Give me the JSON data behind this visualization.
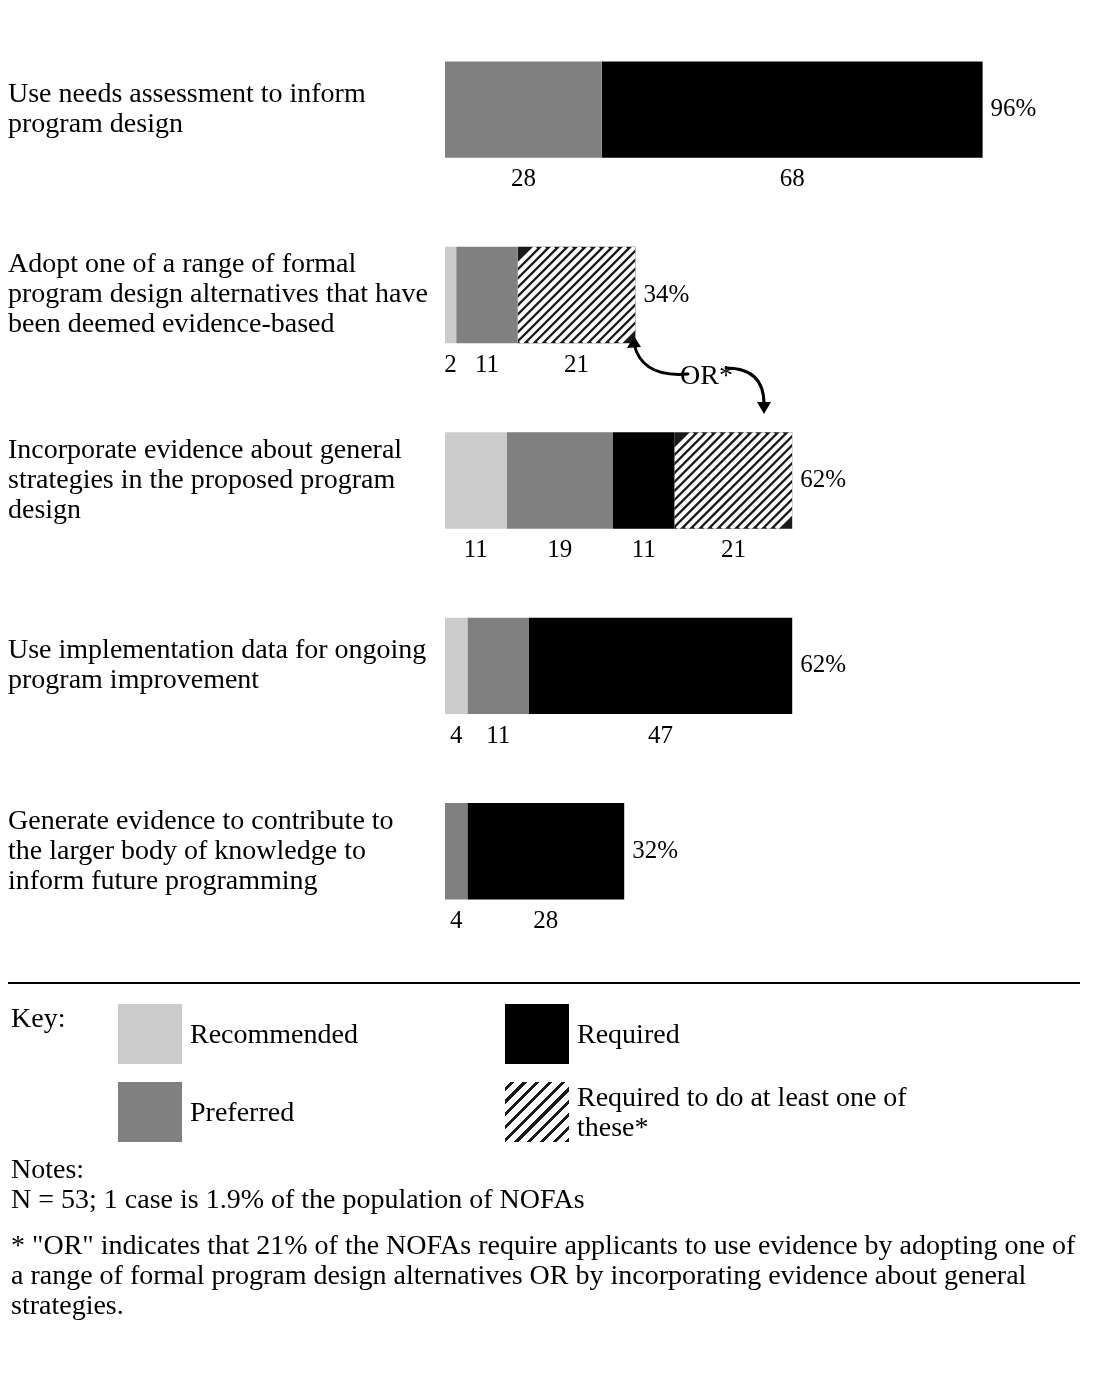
{
  "chart_data": {
    "type": "bar",
    "orientation": "horizontal",
    "stacked": true,
    "categories": [
      "Use needs assessment to inform program design",
      "Adopt one of a range of formal program design alternatives that have been deemed evidence-based",
      "Incorporate evidence about general strategies in the proposed program design",
      "Use implementation data for ongoing program improvement",
      "Generate evidence to contribute to the larger body of knowledge to inform future programming"
    ],
    "series": [
      {
        "name": "Recommended",
        "color": "#cccccc",
        "values": [
          null,
          2,
          11,
          4,
          null
        ]
      },
      {
        "name": "Preferred",
        "color": "#808080",
        "values": [
          28,
          11,
          19,
          11,
          4
        ]
      },
      {
        "name": "Required",
        "color": "#000000",
        "values": [
          68,
          null,
          11,
          47,
          28
        ]
      },
      {
        "name": "Required to do at least one of these*",
        "color": "#1a1a1a",
        "values": [
          null,
          21,
          21,
          null,
          null
        ]
      }
    ],
    "data_labels": true,
    "totals": [
      "96%",
      "34%",
      "62%",
      "62%",
      "32%"
    ],
    "legend": "bottom",
    "legend_title": "Key:",
    "grid": false,
    "tick_labels": "y",
    "annotations": [
      "OR*",
      "Notes:",
      "N = 53; 1 case is 1.9% of the population of NOFAs",
      "* \"OR\" indicates that 21% of the NOFAs require applicants to use evidence by adopting one of a range of formal program design alternatives OR by incorporating evidence about general strategies."
    ]
  }
}
